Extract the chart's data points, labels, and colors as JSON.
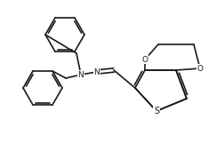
{
  "bg_color": "#ffffff",
  "line_color": "#1a1a1a",
  "line_width": 1.2,
  "figsize": [
    2.53,
    1.61
  ],
  "dpi": 100,
  "xlim": [
    0,
    253
  ],
  "ylim": [
    0,
    161
  ]
}
